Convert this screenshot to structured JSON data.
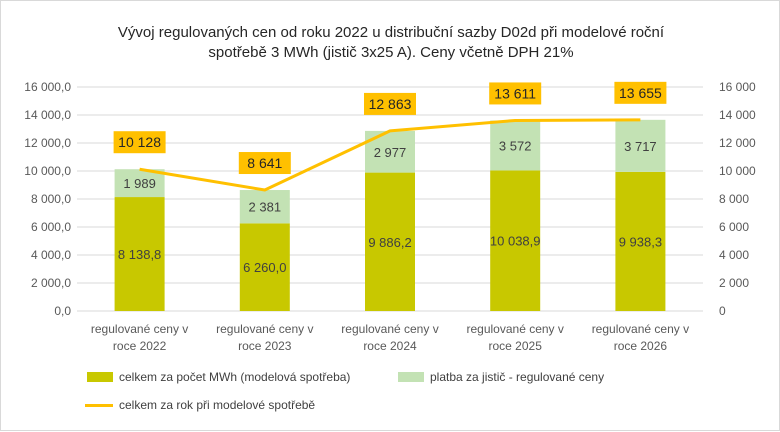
{
  "chart_data": {
    "type": "bar",
    "title_lines": [
      "Vývoj regulovaných cen od roku 2022 u distribuční sazby D02d při modelové roční",
      "spotřebě 3 MWh (jistič 3x25 A). Ceny včetně DPH 21%"
    ],
    "categories": [
      [
        "regulované ceny v",
        "roce 2022"
      ],
      [
        "regulované ceny v",
        "roce 2023"
      ],
      [
        "regulované ceny v",
        "roce 2024"
      ],
      [
        "regulované ceny v",
        "roce 2025"
      ],
      [
        "regulované ceny v",
        "roce 2026"
      ]
    ],
    "series": [
      {
        "name": "celkem za počet MWh (modelová spotřeba)",
        "type": "stacked-bar",
        "color": "#c8c800",
        "values": [
          8138.8,
          6260.0,
          9886.2,
          10038.9,
          9938.3
        ],
        "labels": [
          "8 138,8",
          "6 260,0",
          "9 886,2",
          "10 038,9",
          "9 938,3"
        ]
      },
      {
        "name": "platba za jistič - regulované ceny",
        "type": "stacked-bar",
        "color": "#c3e2b4",
        "values": [
          1989,
          2381,
          2977,
          3572,
          3717
        ],
        "labels": [
          "1 989",
          "2 381",
          "2 977",
          "3 572",
          "3 717"
        ]
      },
      {
        "name": "celkem za rok při modelové spotřebě",
        "type": "line",
        "color": "#ffc000",
        "values": [
          10128,
          8641,
          12863,
          13611,
          13655
        ],
        "labels": [
          "10 128",
          "8 641",
          "12 863",
          "13 611",
          "13 655"
        ]
      }
    ],
    "y_left_ticks": [
      "0,0",
      "2 000,0",
      "4 000,0",
      "6 000,0",
      "8 000,0",
      "10 000,0",
      "12 000,0",
      "14 000,0",
      "16 000,0"
    ],
    "y_right_ticks": [
      "0",
      "2 000",
      "4 000",
      "6 000",
      "8 000",
      "10 000",
      "12 000",
      "14 000",
      "16 000"
    ],
    "ylim": [
      0,
      16000
    ],
    "grid": true,
    "legend_position": "bottom"
  }
}
